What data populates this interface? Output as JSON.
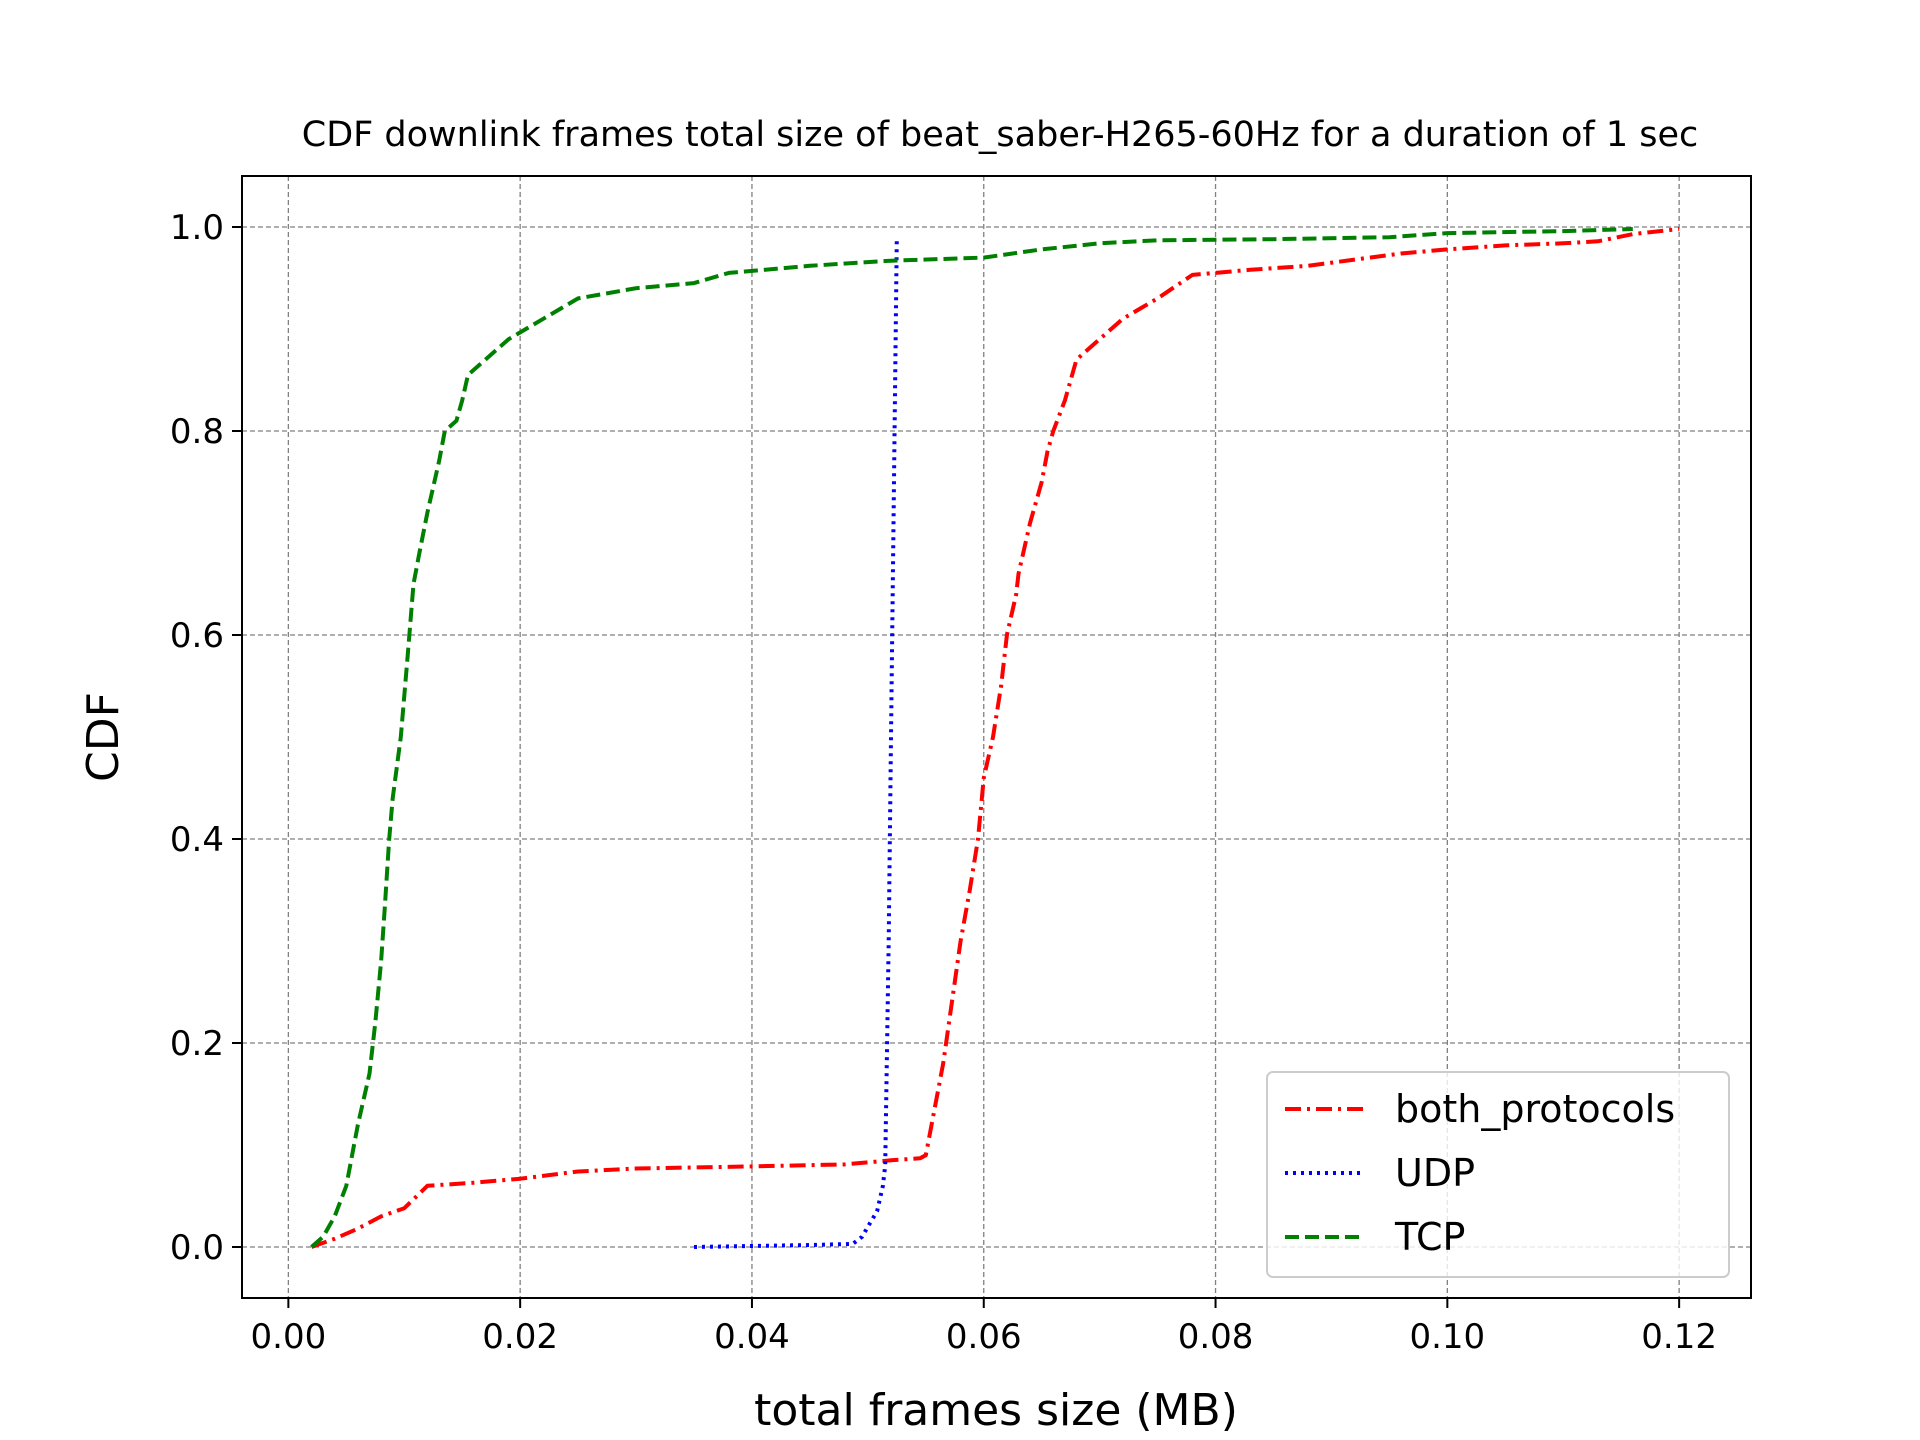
{
  "chart_data": {
    "type": "line",
    "title": "CDF downlink frames total size of beat_saber-H265-60Hz for a duration of 1 sec",
    "xlabel": "total frames size (MB)",
    "ylabel": "CDF",
    "xlim": [
      -0.004,
      0.1262
    ],
    "ylim": [
      -0.05,
      1.05
    ],
    "xticks": [
      0.0,
      0.02,
      0.04,
      0.06,
      0.08,
      0.1,
      0.12
    ],
    "xtick_labels": [
      "0.00",
      "0.02",
      "0.04",
      "0.06",
      "0.08",
      "0.10",
      "0.12"
    ],
    "yticks": [
      0.0,
      0.2,
      0.4,
      0.6,
      0.8,
      1.0
    ],
    "ytick_labels": [
      "0.0",
      "0.2",
      "0.4",
      "0.6",
      "0.8",
      "1.0"
    ],
    "grid": true,
    "legend_position": "lower-right",
    "series": [
      {
        "name": "both_protocols",
        "color": "#ff0000",
        "dash": "dashdot",
        "points": [
          [
            0.002,
            0.0
          ],
          [
            0.004,
            0.008
          ],
          [
            0.006,
            0.018
          ],
          [
            0.008,
            0.03
          ],
          [
            0.01,
            0.038
          ],
          [
            0.012,
            0.06
          ],
          [
            0.016,
            0.063
          ],
          [
            0.02,
            0.067
          ],
          [
            0.025,
            0.074
          ],
          [
            0.03,
            0.077
          ],
          [
            0.04,
            0.079
          ],
          [
            0.048,
            0.081
          ],
          [
            0.052,
            0.085
          ],
          [
            0.0545,
            0.087
          ],
          [
            0.055,
            0.09
          ],
          [
            0.0555,
            0.12
          ],
          [
            0.0565,
            0.18
          ],
          [
            0.0575,
            0.26
          ],
          [
            0.058,
            0.3
          ],
          [
            0.0588,
            0.35
          ],
          [
            0.0595,
            0.4
          ],
          [
            0.06,
            0.46
          ],
          [
            0.0608,
            0.5
          ],
          [
            0.0615,
            0.55
          ],
          [
            0.062,
            0.6
          ],
          [
            0.0628,
            0.64
          ],
          [
            0.063,
            0.66
          ],
          [
            0.064,
            0.71
          ],
          [
            0.065,
            0.75
          ],
          [
            0.0655,
            0.78
          ],
          [
            0.066,
            0.8
          ],
          [
            0.067,
            0.83
          ],
          [
            0.068,
            0.87
          ],
          [
            0.07,
            0.89
          ],
          [
            0.072,
            0.91
          ],
          [
            0.075,
            0.93
          ],
          [
            0.078,
            0.953
          ],
          [
            0.083,
            0.958
          ],
          [
            0.088,
            0.962
          ],
          [
            0.092,
            0.968
          ],
          [
            0.096,
            0.974
          ],
          [
            0.1,
            0.978
          ],
          [
            0.105,
            0.982
          ],
          [
            0.11,
            0.984
          ],
          [
            0.113,
            0.986
          ],
          [
            0.116,
            0.993
          ],
          [
            0.12,
            0.998
          ]
        ]
      },
      {
        "name": "UDP",
        "color": "#0000ff",
        "dash": "dotted",
        "points": [
          [
            0.035,
            0.0
          ],
          [
            0.04,
            0.001
          ],
          [
            0.045,
            0.002
          ],
          [
            0.0487,
            0.003
          ],
          [
            0.0495,
            0.01
          ],
          [
            0.05,
            0.02
          ],
          [
            0.0508,
            0.035
          ],
          [
            0.0513,
            0.06
          ],
          [
            0.0515,
            0.08
          ],
          [
            0.0518,
            0.3
          ],
          [
            0.052,
            0.5
          ],
          [
            0.0522,
            0.7
          ],
          [
            0.0525,
            0.99
          ]
        ]
      },
      {
        "name": "TCP",
        "color": "#008000",
        "dash": "dashed",
        "points": [
          [
            0.002,
            0.0
          ],
          [
            0.003,
            0.01
          ],
          [
            0.004,
            0.03
          ],
          [
            0.005,
            0.06
          ],
          [
            0.006,
            0.12
          ],
          [
            0.007,
            0.17
          ],
          [
            0.0075,
            0.22
          ],
          [
            0.008,
            0.28
          ],
          [
            0.0083,
            0.33
          ],
          [
            0.0087,
            0.4
          ],
          [
            0.009,
            0.44
          ],
          [
            0.0097,
            0.5
          ],
          [
            0.0103,
            0.58
          ],
          [
            0.0108,
            0.65
          ],
          [
            0.0113,
            0.68
          ],
          [
            0.012,
            0.72
          ],
          [
            0.013,
            0.77
          ],
          [
            0.0135,
            0.8
          ],
          [
            0.0145,
            0.81
          ],
          [
            0.015,
            0.83
          ],
          [
            0.0155,
            0.855
          ],
          [
            0.017,
            0.87
          ],
          [
            0.019,
            0.89
          ],
          [
            0.022,
            0.91
          ],
          [
            0.025,
            0.93
          ],
          [
            0.03,
            0.94
          ],
          [
            0.035,
            0.945
          ],
          [
            0.038,
            0.955
          ],
          [
            0.045,
            0.962
          ],
          [
            0.052,
            0.967
          ],
          [
            0.06,
            0.97
          ],
          [
            0.065,
            0.978
          ],
          [
            0.07,
            0.984
          ],
          [
            0.075,
            0.987
          ],
          [
            0.085,
            0.988
          ],
          [
            0.095,
            0.99
          ],
          [
            0.1,
            0.994
          ],
          [
            0.11,
            0.996
          ],
          [
            0.116,
            0.998
          ]
        ]
      }
    ]
  }
}
